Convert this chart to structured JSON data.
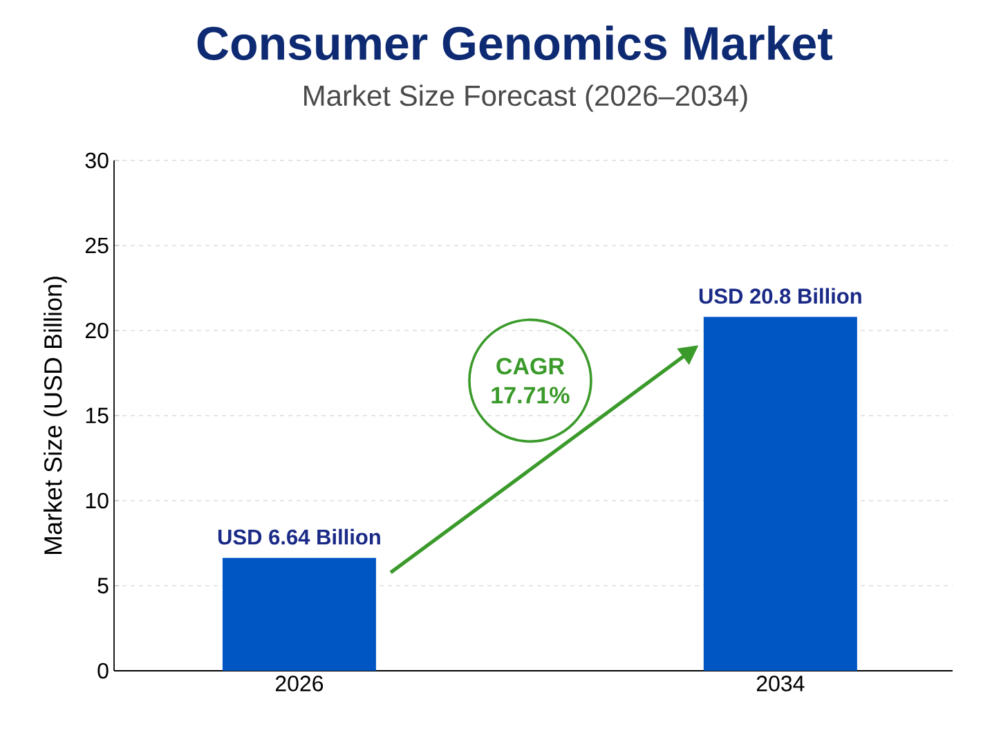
{
  "chart_data": {
    "type": "bar",
    "title": "Consumer Genomics Market",
    "subtitle": "Market Size Forecast (2026–2034)",
    "ylabel": "Market Size (USD Billion)",
    "categories": [
      "2026",
      "2034"
    ],
    "values": [
      6.64,
      20.8
    ],
    "value_labels": [
      "USD 6.64 Billion",
      "USD 20.8 Billion"
    ],
    "color": "#0057c4",
    "ylim": [
      0,
      30
    ],
    "yticks": [
      0,
      5,
      10,
      15,
      20,
      25,
      30
    ],
    "grid": "y",
    "annotations": [
      "CAGR 17.71%"
    ]
  }
}
